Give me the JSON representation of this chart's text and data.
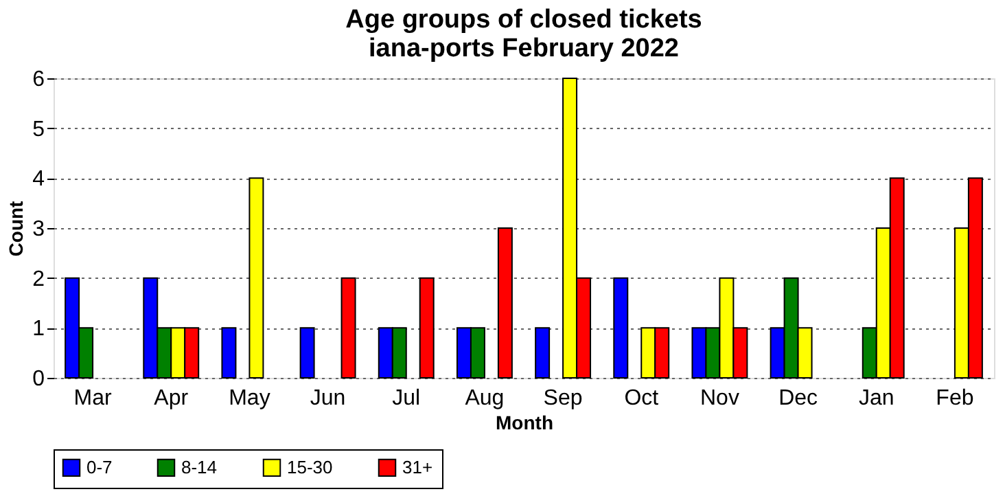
{
  "chart_data": {
    "type": "bar",
    "title": "Age groups of closed tickets",
    "subtitle": "iana-ports February 2022",
    "xlabel": "Month",
    "ylabel": "Count",
    "categories": [
      "Mar",
      "Apr",
      "May",
      "Jun",
      "Jul",
      "Aug",
      "Sep",
      "Oct",
      "Nov",
      "Dec",
      "Jan",
      "Feb"
    ],
    "series": [
      {
        "name": "0-7",
        "color": "#0000ff",
        "values": [
          2,
          2,
          1,
          1,
          1,
          1,
          1,
          2,
          1,
          1,
          0,
          0
        ]
      },
      {
        "name": "8-14",
        "color": "#008000",
        "values": [
          1,
          1,
          0,
          0,
          1,
          1,
          0,
          0,
          1,
          2,
          1,
          0
        ]
      },
      {
        "name": "15-30",
        "color": "#ffff00",
        "values": [
          0,
          1,
          4,
          0,
          0,
          0,
          6,
          1,
          2,
          1,
          3,
          3
        ]
      },
      {
        "name": "31+",
        "color": "#ff0000",
        "values": [
          0,
          1,
          0,
          2,
          2,
          3,
          2,
          1,
          1,
          0,
          4,
          4
        ]
      }
    ],
    "ylim": [
      0,
      6
    ],
    "yticks": [
      0,
      1,
      2,
      3,
      4,
      5,
      6
    ],
    "grid": "y",
    "legend": "bottom"
  }
}
